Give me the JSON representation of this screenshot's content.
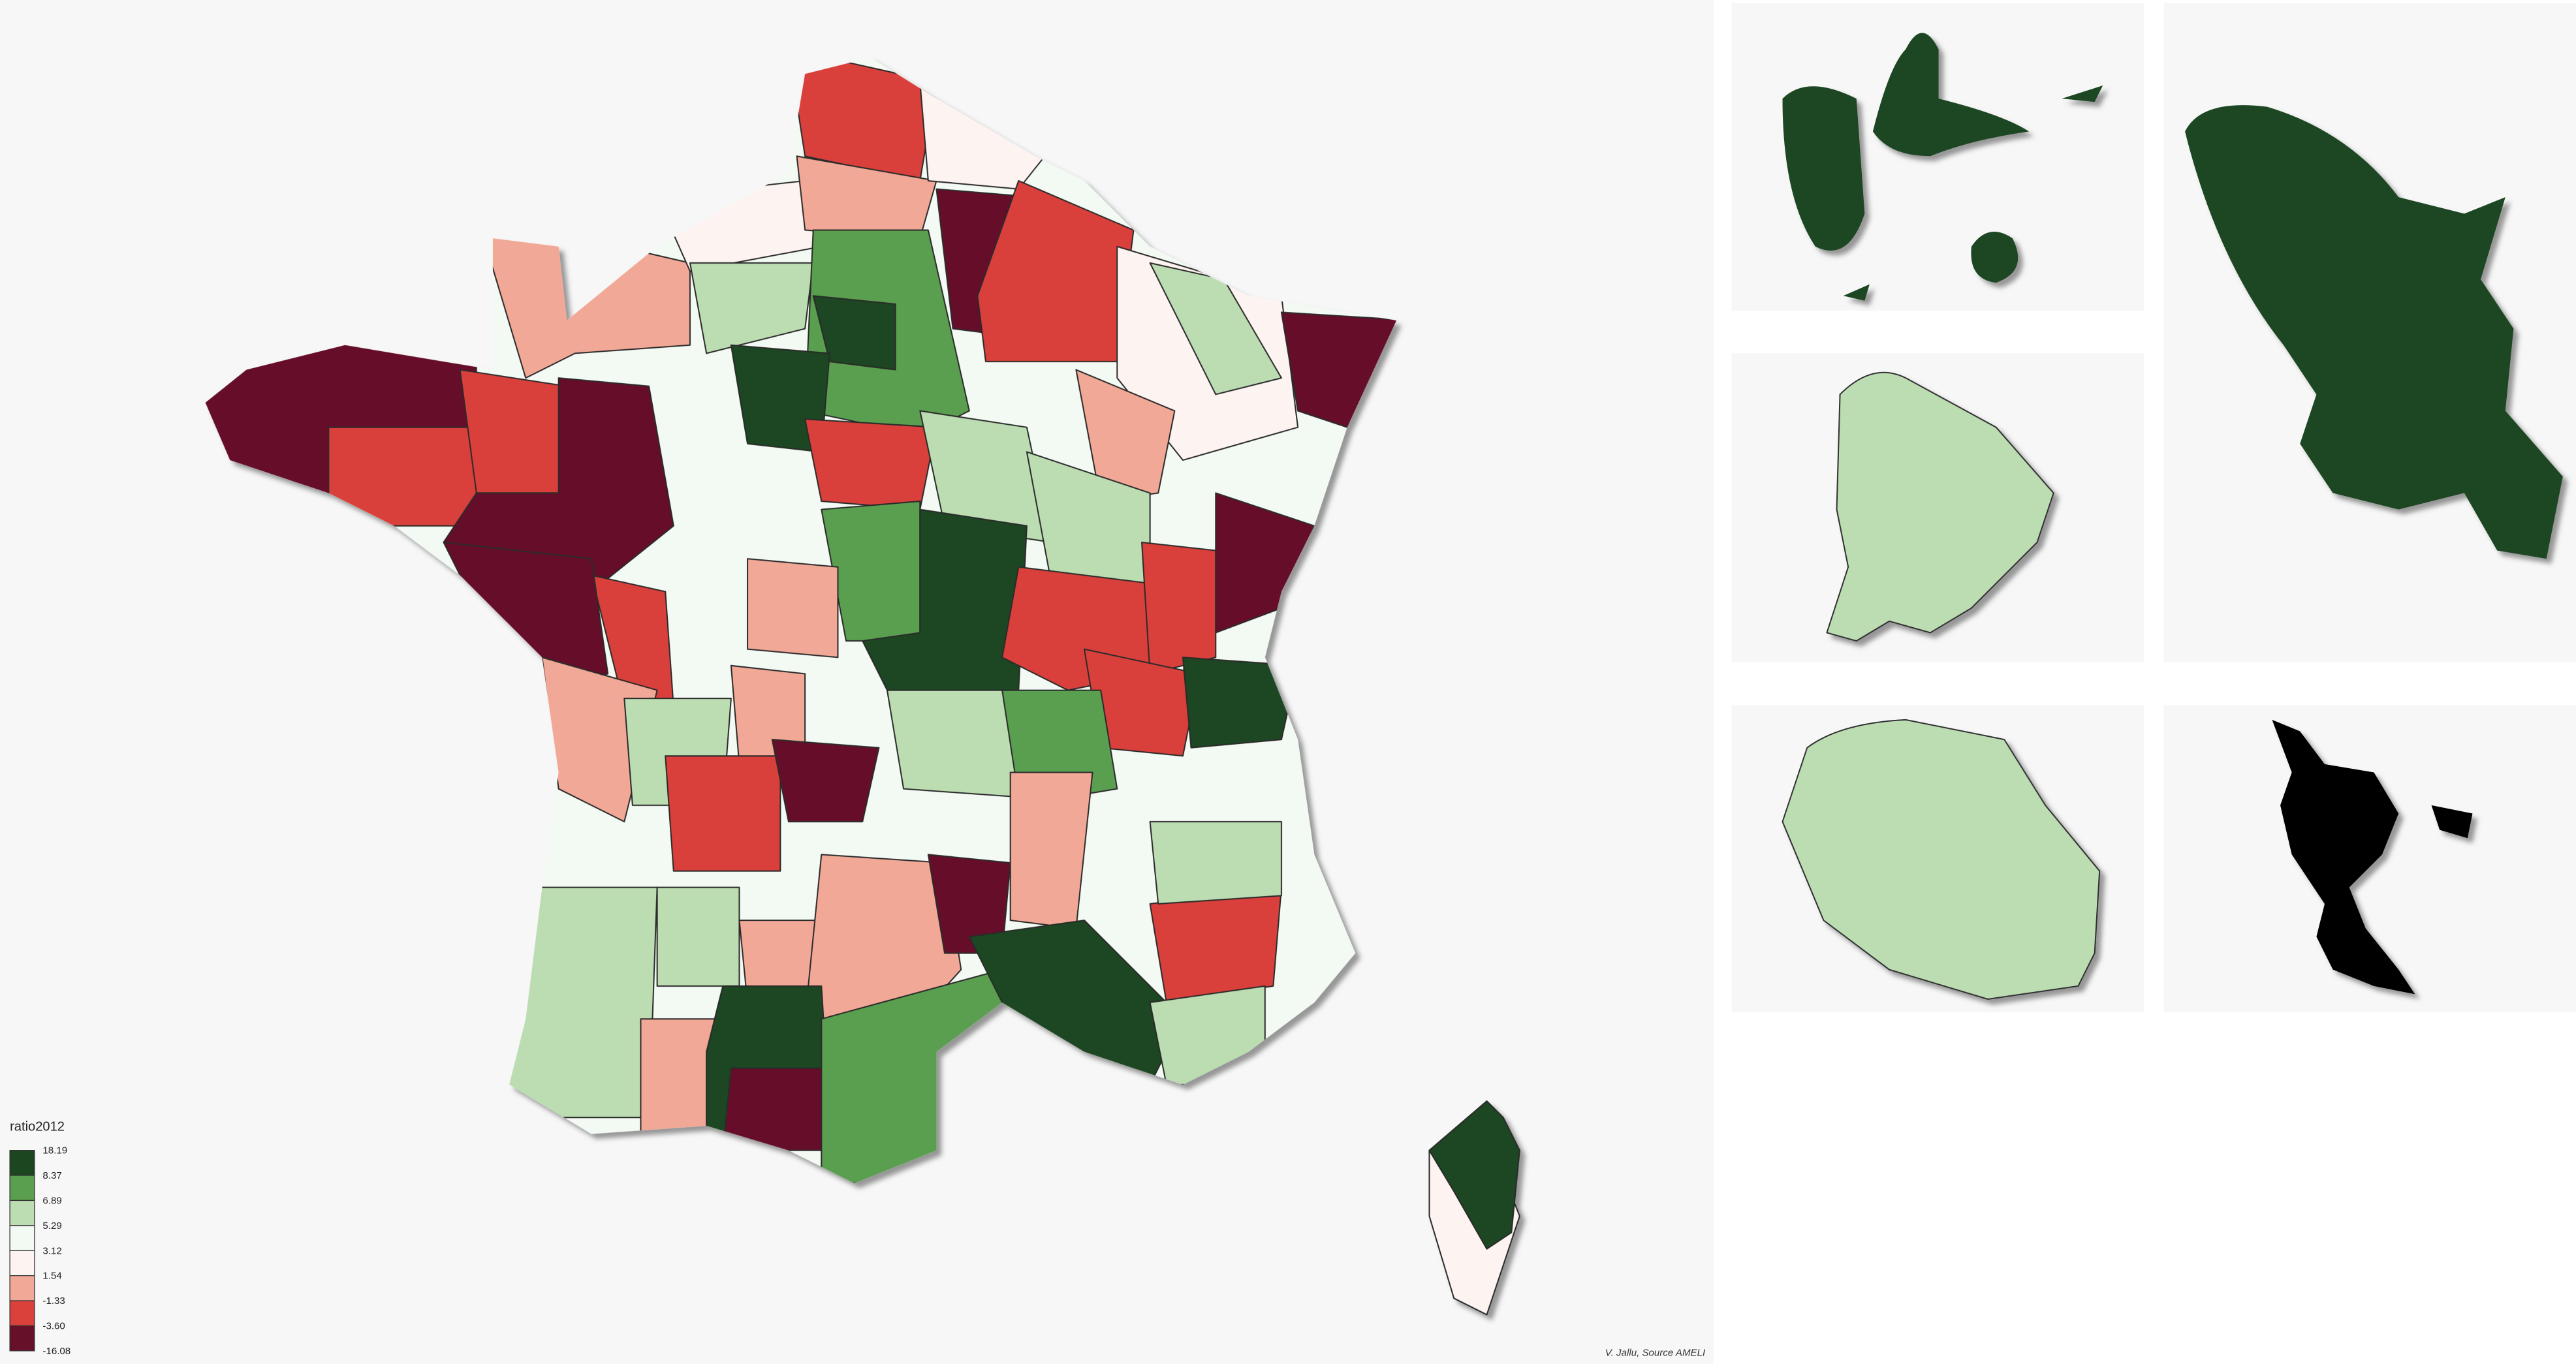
{
  "legend": {
    "title": "ratio2012",
    "breaks": [
      "18.19",
      "8.37",
      "6.89",
      "5.29",
      "3.12",
      "1.54",
      "-1.33",
      "-3.60",
      "-16.08"
    ],
    "colors": [
      "#1b4620",
      "#5a9e4f",
      "#bcdcb2",
      "#f3f9f3",
      "#fdf3f1",
      "#f2a896",
      "#d9413a",
      "#66102a"
    ]
  },
  "credit": "V. Jallu, Source AMELI"
}
